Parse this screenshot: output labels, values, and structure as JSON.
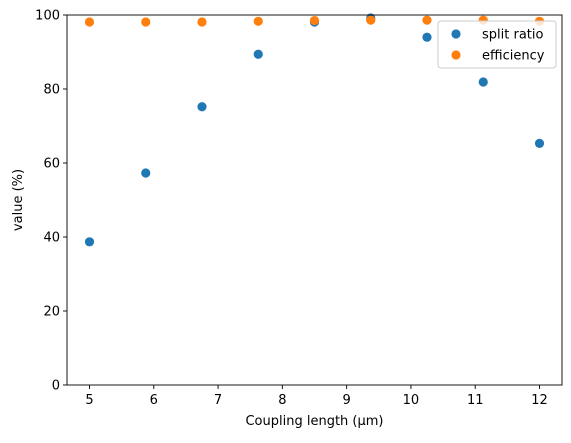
{
  "chart_data": {
    "type": "scatter",
    "title": "",
    "xlabel": "Coupling length (µm)",
    "ylabel": "value (%)",
    "xlim": [
      4.65,
      12.35
    ],
    "ylim": [
      0,
      100
    ],
    "xticks": [
      5,
      6,
      7,
      8,
      9,
      10,
      11,
      12
    ],
    "yticks": [
      0,
      20,
      40,
      60,
      80,
      100
    ],
    "grid": false,
    "legend_position": "top-right",
    "x": [
      5.0,
      5.875,
      6.75,
      7.625,
      8.5,
      9.375,
      10.25,
      11.125,
      12.0
    ],
    "series": [
      {
        "name": "split ratio",
        "color": "#1f77b4",
        "values": [
          38.7,
          57.3,
          75.2,
          89.4,
          98.1,
          99.2,
          94.0,
          81.9,
          65.3
        ]
      },
      {
        "name": "efficiency",
        "color": "#ff7f0e",
        "values": [
          98.1,
          98.1,
          98.1,
          98.3,
          98.5,
          98.6,
          98.6,
          98.6,
          98.3
        ]
      }
    ]
  }
}
